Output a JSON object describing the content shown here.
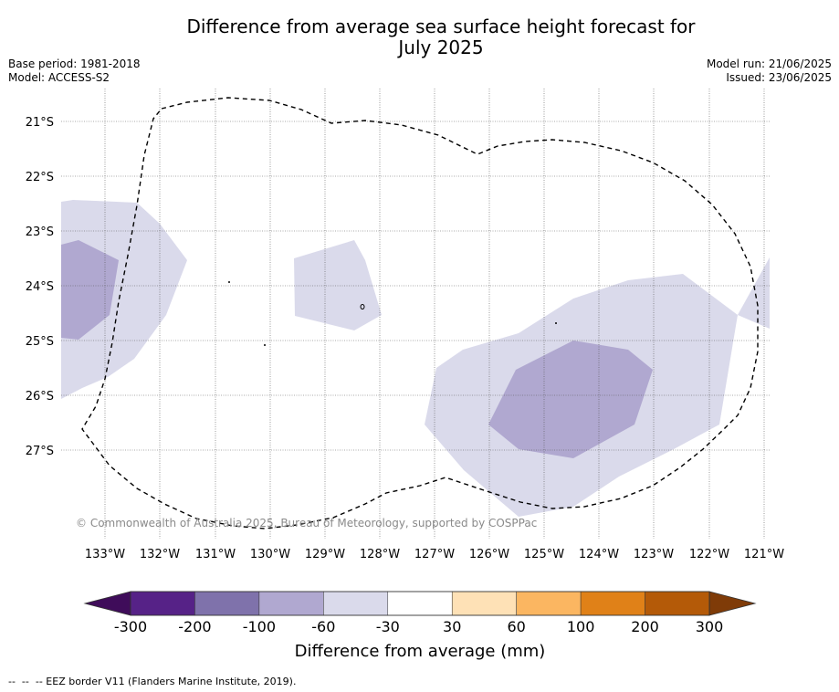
{
  "title": {
    "line1": "Difference from average sea surface height forecast for",
    "line2": "July 2025"
  },
  "meta": {
    "base_period": "Base period: 1981-2018",
    "model": "Model: ACCESS-S2",
    "model_run": "Model run: 21/06/2025",
    "issued": "Issued: 23/06/2025"
  },
  "axes": {
    "lat_labels": [
      "21°S",
      "22°S",
      "23°S",
      "24°S",
      "25°S",
      "26°S",
      "27°S"
    ],
    "lon_labels": [
      "133°W",
      "132°W",
      "131°W",
      "130°W",
      "129°W",
      "128°W",
      "127°W",
      "126°W",
      "125°W",
      "124°W",
      "123°W",
      "122°W",
      "121°W"
    ]
  },
  "copyright": "© Commonwealth of Australia 2025, Bureau of Meteorology, supported by COSPPac",
  "colorbar": {
    "colors": [
      "#3f0c5a",
      "#562287",
      "#7f72ab",
      "#b0a8d0",
      "#dadaeb",
      "#ffffff",
      "#fee1b6",
      "#fbb661",
      "#e08118",
      "#b45a08",
      "#7f3b08"
    ],
    "ticks": [
      "-300",
      "-200",
      "-100",
      "-60",
      "-30",
      "30",
      "60",
      "100",
      "200",
      "300"
    ],
    "label": "Difference from average (mm)"
  },
  "footer": "--  --  -- EEZ border V11 (Flanders Marine Institute, 2019)."
}
